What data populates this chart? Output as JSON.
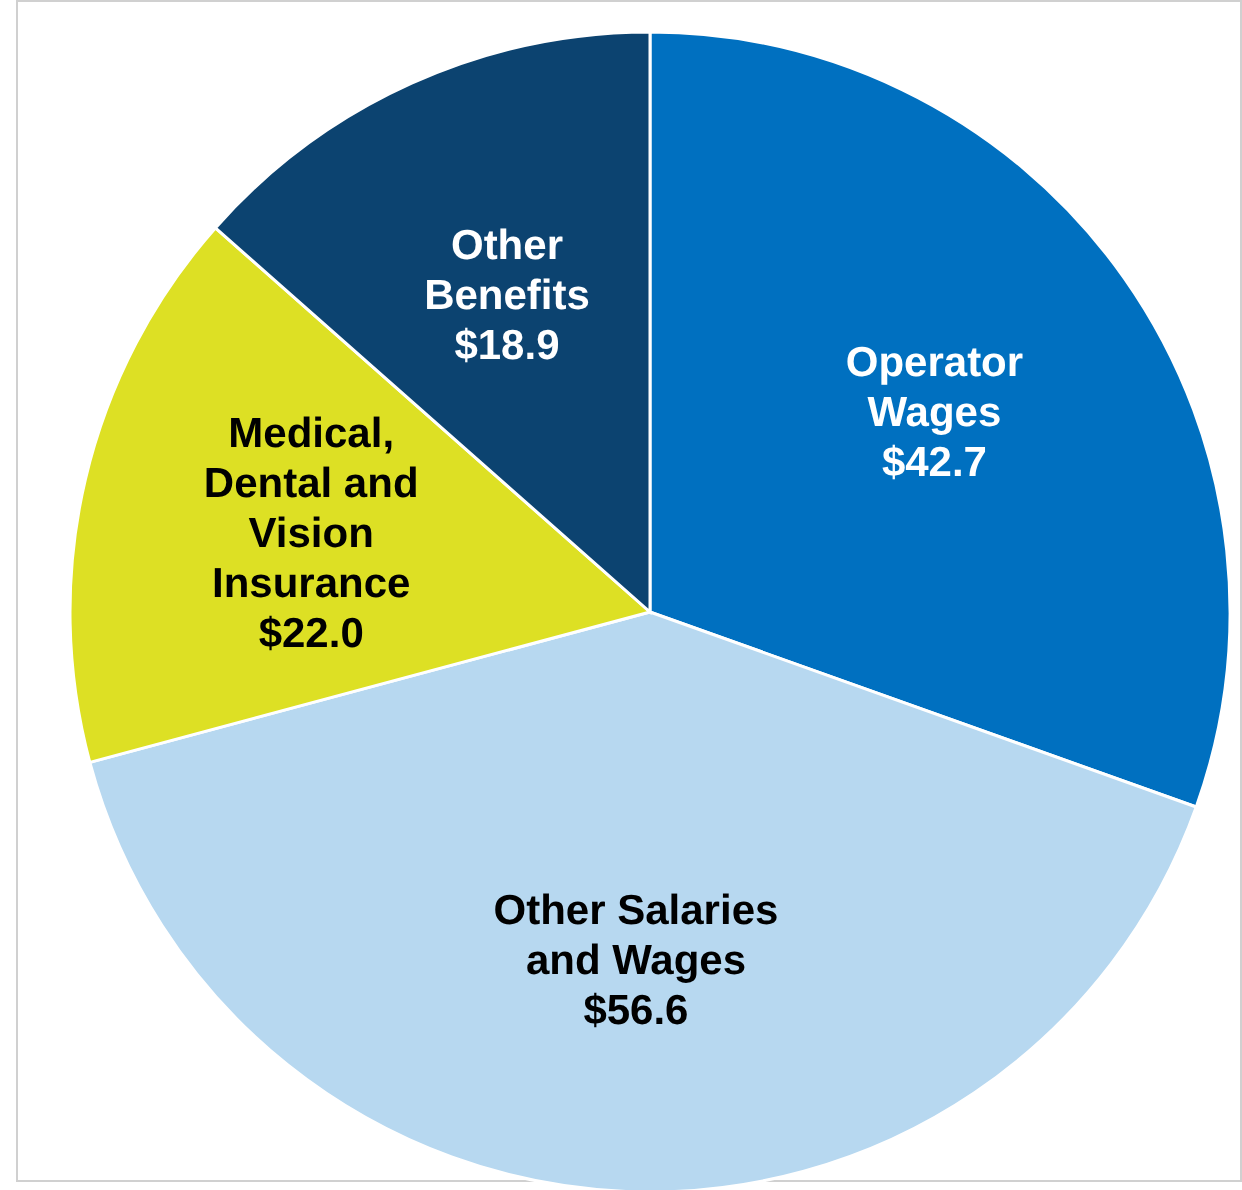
{
  "chart_data": {
    "type": "pie",
    "categories": [
      "Operator Wages",
      "Other Salaries and Wages",
      "Medical, Dental and Vision Insurance",
      "Other Benefits"
    ],
    "values": [
      42.7,
      56.6,
      22.0,
      18.9
    ],
    "value_labels": [
      "$42.7",
      "$56.6",
      "$22.0",
      "$18.9"
    ],
    "colors": [
      "#0070c0",
      "#b7d8f0",
      "#dde024",
      "#0c4370"
    ]
  }
}
